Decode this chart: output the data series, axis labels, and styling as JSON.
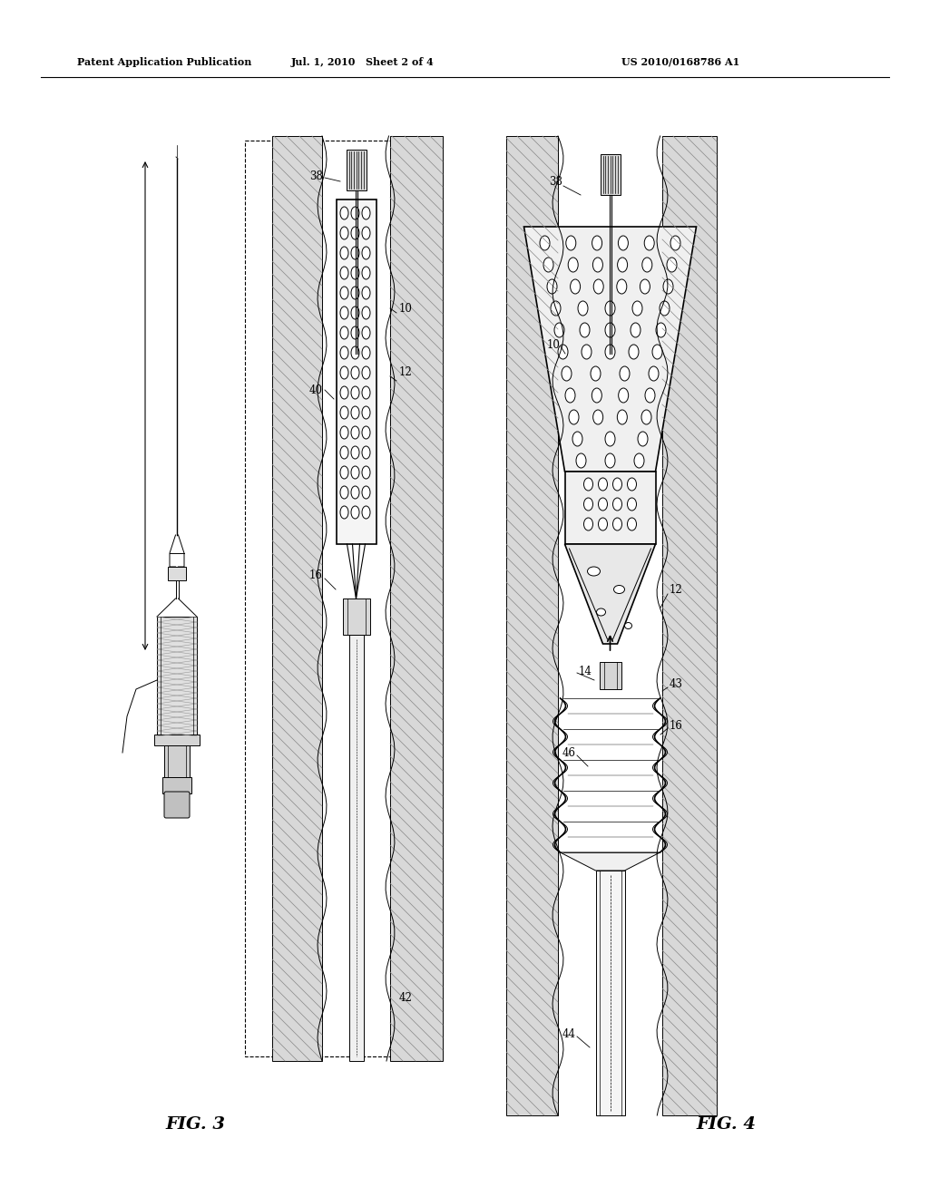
{
  "title_left": "Patent Application Publication",
  "title_mid": "Jul. 1, 2010   Sheet 2 of 4",
  "title_right": "US 2010/0168786 A1",
  "fig3_label": "FIG. 3",
  "fig4_label": "FIG. 4",
  "background_color": "#ffffff",
  "line_color": "#000000",
  "gray_hatch": "#777777",
  "light_gray": "#e8e8e8",
  "mid_gray": "#cccccc"
}
